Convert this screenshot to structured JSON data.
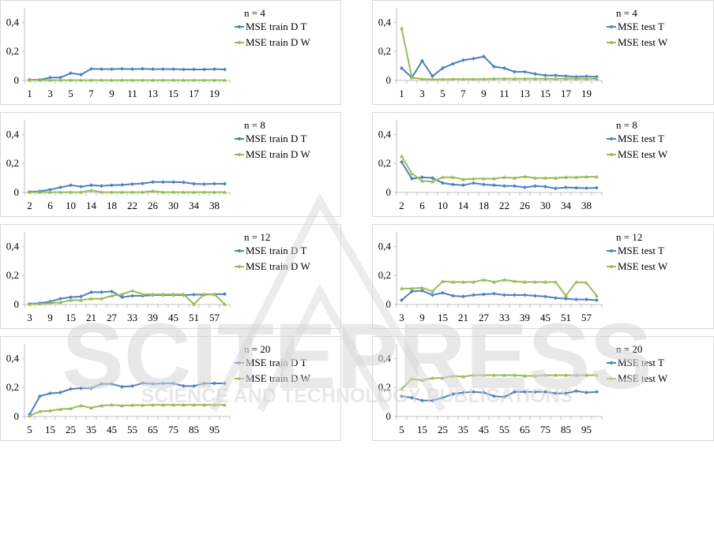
{
  "colors": {
    "series_T": "#4f81bd",
    "series_W": "#9bbb59",
    "axis": "#bfbfbf",
    "text": "#000000",
    "watermark": "#d6d6d6"
  },
  "watermark": {
    "main": "SCITEPRESS",
    "sub": "SCIENCE AND TECHNOLOGY PUBLICATIONS"
  },
  "chart_data": [
    {
      "type": "line",
      "title": "n = 4",
      "ylim": [
        0,
        0.5
      ],
      "yticks": [
        "0",
        "0,2",
        "0,4"
      ],
      "categories": [
        "1",
        "2",
        "3",
        "4",
        "5",
        "6",
        "7",
        "8",
        "9",
        "10",
        "11",
        "12",
        "13",
        "14",
        "15",
        "16",
        "17",
        "18",
        "19",
        "20"
      ],
      "xtick_labels": [
        "1",
        "3",
        "5",
        "7",
        "9",
        "11",
        "13",
        "15",
        "17",
        "19"
      ],
      "series": [
        {
          "name": "MSE train D T",
          "values": [
            0.005,
            0.005,
            0.02,
            0.02,
            0.05,
            0.04,
            0.08,
            0.078,
            0.078,
            0.08,
            0.078,
            0.08,
            0.078,
            0.078,
            0.078,
            0.076,
            0.076,
            0.076,
            0.078,
            0.076
          ]
        },
        {
          "name": "MSE train D W",
          "values": [
            0.002,
            0.002,
            0.002,
            0.002,
            0.002,
            0.002,
            0.002,
            0.002,
            0.002,
            0.002,
            0.002,
            0.002,
            0.002,
            0.002,
            0.002,
            0.002,
            0.002,
            0.002,
            0.002,
            0.002
          ]
        }
      ]
    },
    {
      "type": "line",
      "title": "n = 4",
      "ylim": [
        0,
        0.5
      ],
      "yticks": [
        "0",
        "0,2",
        "0,4"
      ],
      "categories": [
        "1",
        "2",
        "3",
        "4",
        "5",
        "6",
        "7",
        "8",
        "9",
        "10",
        "11",
        "12",
        "13",
        "14",
        "15",
        "16",
        "17",
        "18",
        "19",
        "20"
      ],
      "xtick_labels": [
        "1",
        "3",
        "5",
        "7",
        "9",
        "11",
        "13",
        "15",
        "17",
        "19"
      ],
      "series": [
        {
          "name": "MSE test T",
          "values": [
            0.085,
            0.02,
            0.135,
            0.03,
            0.085,
            0.115,
            0.14,
            0.15,
            0.165,
            0.095,
            0.085,
            0.06,
            0.06,
            0.045,
            0.035,
            0.035,
            0.03,
            0.025,
            0.028,
            0.025
          ]
        },
        {
          "name": "MSE test W",
          "values": [
            0.36,
            0.02,
            0.01,
            0.008,
            0.008,
            0.01,
            0.01,
            0.01,
            0.01,
            0.012,
            0.012,
            0.012,
            0.012,
            0.012,
            0.012,
            0.012,
            0.012,
            0.012,
            0.012,
            0.012
          ]
        }
      ]
    },
    {
      "type": "line",
      "title": "n = 8",
      "ylim": [
        0,
        0.5
      ],
      "yticks": [
        "0",
        "0,2",
        "0,4"
      ],
      "categories": [
        "2",
        "4",
        "6",
        "8",
        "10",
        "12",
        "14",
        "16",
        "18",
        "20",
        "22",
        "24",
        "26",
        "28",
        "30",
        "32",
        "34",
        "36",
        "38",
        "40"
      ],
      "xtick_labels": [
        "2",
        "6",
        "10",
        "14",
        "18",
        "22",
        "26",
        "30",
        "34",
        "38"
      ],
      "series": [
        {
          "name": "MSE train D T",
          "values": [
            0.005,
            0.008,
            0.02,
            0.035,
            0.05,
            0.04,
            0.05,
            0.045,
            0.05,
            0.052,
            0.058,
            0.062,
            0.072,
            0.072,
            0.072,
            0.07,
            0.06,
            0.058,
            0.06,
            0.06
          ]
        },
        {
          "name": "MSE train D W",
          "values": [
            0.002,
            0.002,
            0.002,
            0.002,
            0.002,
            0.002,
            0.015,
            0.002,
            0.002,
            0.002,
            0.002,
            0.002,
            0.01,
            0.002,
            0.002,
            0.002,
            0.002,
            0.002,
            0.002,
            0.002
          ]
        }
      ]
    },
    {
      "type": "line",
      "title": "n = 8",
      "ylim": [
        0,
        0.5
      ],
      "yticks": [
        "0",
        "0,2",
        "0,4"
      ],
      "categories": [
        "2",
        "4",
        "6",
        "8",
        "10",
        "12",
        "14",
        "16",
        "18",
        "20",
        "22",
        "24",
        "26",
        "28",
        "30",
        "32",
        "34",
        "36",
        "38",
        "40"
      ],
      "xtick_labels": [
        "2",
        "6",
        "10",
        "14",
        "18",
        "22",
        "26",
        "30",
        "34",
        "38"
      ],
      "series": [
        {
          "name": "MSE test T",
          "values": [
            0.21,
            0.095,
            0.105,
            0.1,
            0.065,
            0.055,
            0.05,
            0.065,
            0.055,
            0.05,
            0.045,
            0.045,
            0.035,
            0.045,
            0.04,
            0.028,
            0.035,
            0.032,
            0.03,
            0.032
          ]
        },
        {
          "name": "MSE test W",
          "values": [
            0.25,
            0.13,
            0.08,
            0.075,
            0.105,
            0.105,
            0.09,
            0.095,
            0.095,
            0.095,
            0.105,
            0.1,
            0.11,
            0.1,
            0.1,
            0.1,
            0.105,
            0.105,
            0.108,
            0.108
          ]
        }
      ]
    },
    {
      "type": "line",
      "title": "n = 12",
      "ylim": [
        0,
        0.5
      ],
      "yticks": [
        "0",
        "0,2",
        "0,4"
      ],
      "categories": [
        "3",
        "6",
        "9",
        "12",
        "15",
        "18",
        "21",
        "24",
        "27",
        "30",
        "33",
        "36",
        "39",
        "42",
        "45",
        "48",
        "51",
        "54",
        "57",
        "60"
      ],
      "xtick_labels": [
        "3",
        "9",
        "15",
        "21",
        "27",
        "33",
        "39",
        "45",
        "51",
        "57"
      ],
      "series": [
        {
          "name": "MSE train D T",
          "values": [
            0.005,
            0.01,
            0.02,
            0.04,
            0.05,
            0.055,
            0.085,
            0.085,
            0.09,
            0.05,
            0.06,
            0.06,
            0.065,
            0.065,
            0.065,
            0.065,
            0.068,
            0.068,
            0.07,
            0.072
          ]
        },
        {
          "name": "MSE train D W",
          "values": [
            0.002,
            0.005,
            0.01,
            0.015,
            0.03,
            0.03,
            0.04,
            0.04,
            0.06,
            0.07,
            0.095,
            0.07,
            0.07,
            0.07,
            0.07,
            0.07,
            0.002,
            0.072,
            0.07,
            0.002
          ]
        }
      ]
    },
    {
      "type": "line",
      "title": "n = 12",
      "ylim": [
        0,
        0.5
      ],
      "yticks": [
        "0",
        "0,2",
        "0,4"
      ],
      "categories": [
        "3",
        "6",
        "9",
        "12",
        "15",
        "18",
        "21",
        "24",
        "27",
        "30",
        "33",
        "36",
        "39",
        "42",
        "45",
        "48",
        "51",
        "54",
        "57",
        "60"
      ],
      "xtick_labels": [
        "3",
        "9",
        "15",
        "21",
        "27",
        "33",
        "39",
        "45",
        "51",
        "57"
      ],
      "series": [
        {
          "name": "MSE test T",
          "values": [
            0.03,
            0.09,
            0.095,
            0.065,
            0.08,
            0.06,
            0.055,
            0.065,
            0.07,
            0.075,
            0.065,
            0.065,
            0.065,
            0.06,
            0.055,
            0.045,
            0.04,
            0.035,
            0.035,
            0.03
          ]
        },
        {
          "name": "MSE test W",
          "values": [
            0.11,
            0.11,
            0.115,
            0.09,
            0.16,
            0.155,
            0.155,
            0.155,
            0.17,
            0.155,
            0.17,
            0.16,
            0.155,
            0.155,
            0.155,
            0.155,
            0.06,
            0.155,
            0.15,
            0.06
          ]
        }
      ]
    },
    {
      "type": "line",
      "title": "n = 20",
      "ylim": [
        0,
        0.5
      ],
      "yticks": [
        "0",
        "0,2",
        "0,4"
      ],
      "categories": [
        "5",
        "10",
        "15",
        "20",
        "25",
        "30",
        "35",
        "40",
        "45",
        "50",
        "55",
        "60",
        "65",
        "70",
        "75",
        "80",
        "85",
        "90",
        "95",
        "100"
      ],
      "xtick_labels": [
        "5",
        "15",
        "25",
        "35",
        "45",
        "55",
        "65",
        "75",
        "85",
        "95"
      ],
      "series": [
        {
          "name": "MSE train D T",
          "values": [
            0.015,
            0.14,
            0.16,
            0.165,
            0.19,
            0.195,
            0.195,
            0.225,
            0.225,
            0.205,
            0.21,
            0.23,
            0.225,
            0.228,
            0.228,
            0.21,
            0.21,
            0.228,
            0.228,
            0.228
          ]
        },
        {
          "name": "MSE train D W",
          "values": [
            0.005,
            0.035,
            0.04,
            0.05,
            0.055,
            0.075,
            0.06,
            0.075,
            0.08,
            0.075,
            0.078,
            0.078,
            0.08,
            0.08,
            0.08,
            0.08,
            0.08,
            0.08,
            0.08,
            0.08
          ]
        }
      ]
    },
    {
      "type": "line",
      "title": "n = 20",
      "ylim": [
        0,
        0.5
      ],
      "yticks": [
        "0",
        "0,2",
        "0,4"
      ],
      "categories": [
        "5",
        "10",
        "15",
        "20",
        "25",
        "30",
        "35",
        "40",
        "45",
        "50",
        "55",
        "60",
        "65",
        "70",
        "75",
        "80",
        "85",
        "90",
        "95",
        "100"
      ],
      "xtick_labels": [
        "5",
        "15",
        "25",
        "35",
        "45",
        "55",
        "65",
        "75",
        "85",
        "95"
      ],
      "series": [
        {
          "name": "MSE test T",
          "values": [
            0.14,
            0.13,
            0.11,
            0.11,
            0.13,
            0.155,
            0.165,
            0.17,
            0.165,
            0.14,
            0.135,
            0.17,
            0.17,
            0.17,
            0.17,
            0.16,
            0.16,
            0.175,
            0.165,
            0.17
          ]
        },
        {
          "name": "MSE test W",
          "values": [
            0.19,
            0.26,
            0.25,
            0.265,
            0.265,
            0.28,
            0.275,
            0.285,
            0.285,
            0.285,
            0.285,
            0.285,
            0.28,
            0.28,
            0.285,
            0.285,
            0.285,
            0.285,
            0.285,
            0.285
          ]
        }
      ]
    }
  ]
}
